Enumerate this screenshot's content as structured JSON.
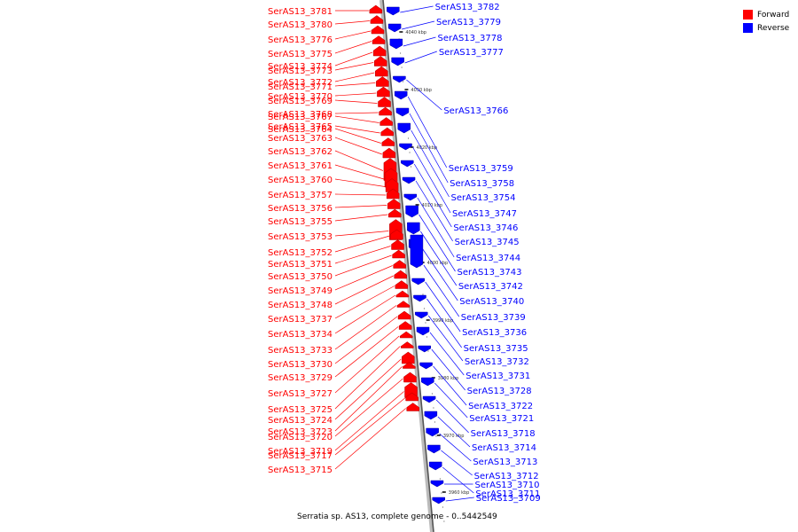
{
  "legend": {
    "forward_label": "Forward",
    "reverse_label": "Reverse",
    "forward_color": "#ff0000",
    "reverse_color": "#0000ff"
  },
  "caption": "Serratia sp. AS13, complete genome - 0..5442549",
  "ticks": [
    "4040 kbp",
    "4030 kbp",
    "4020 kbp",
    "4010 kbp",
    "4000 kbp",
    "3990 kbp",
    "3980 kbp",
    "3970 kbp",
    "3960 kbp"
  ],
  "forward_genes": [
    "SerAS13_3781",
    "SerAS13_3780",
    "SerAS13_3776",
    "SerAS13_3775",
    "SerAS13_3774",
    "SerAS13_3773",
    "SerAS13_3772",
    "SerAS13_3771",
    "SerAS13_3770",
    "SerAS13_3769",
    "SerAS13_3768",
    "SerAS13_3767",
    "SerAS13_3765",
    "SerAS13_3764",
    "SerAS13_3763",
    "SerAS13_3762",
    "SerAS13_3761",
    "SerAS13_3760",
    "SerAS13_3757",
    "SerAS13_3756",
    "SerAS13_3755",
    "SerAS13_3753",
    "SerAS13_3752",
    "SerAS13_3751",
    "SerAS13_3750",
    "SerAS13_3749",
    "SerAS13_3748",
    "SerAS13_3737",
    "SerAS13_3734",
    "SerAS13_3733",
    "SerAS13_3730",
    "SerAS13_3729",
    "SerAS13_3727",
    "SerAS13_3725",
    "SerAS13_3724",
    "SerAS13_3723",
    "SerAS13_3720",
    "SerAS13_3719",
    "SerAS13_3717",
    "SerAS13_3715"
  ],
  "reverse_genes": [
    "SerAS13_3782",
    "SerAS13_3779",
    "SerAS13_3778",
    "SerAS13_3777",
    "SerAS13_3766",
    "SerAS13_3759",
    "SerAS13_3758",
    "SerAS13_3754",
    "SerAS13_3747",
    "SerAS13_3746",
    "SerAS13_3745",
    "SerAS13_3744",
    "SerAS13_3743",
    "SerAS13_3742",
    "SerAS13_3740",
    "SerAS13_3739",
    "SerAS13_3736",
    "SerAS13_3735",
    "SerAS13_3732",
    "SerAS13_3731",
    "SerAS13_3728",
    "SerAS13_3722",
    "SerAS13_3721",
    "SerAS13_3718",
    "SerAS13_3714",
    "SerAS13_3713",
    "SerAS13_3712",
    "SerAS13_3711",
    "SerAS13_3710",
    "SerAS13_3709"
  ]
}
